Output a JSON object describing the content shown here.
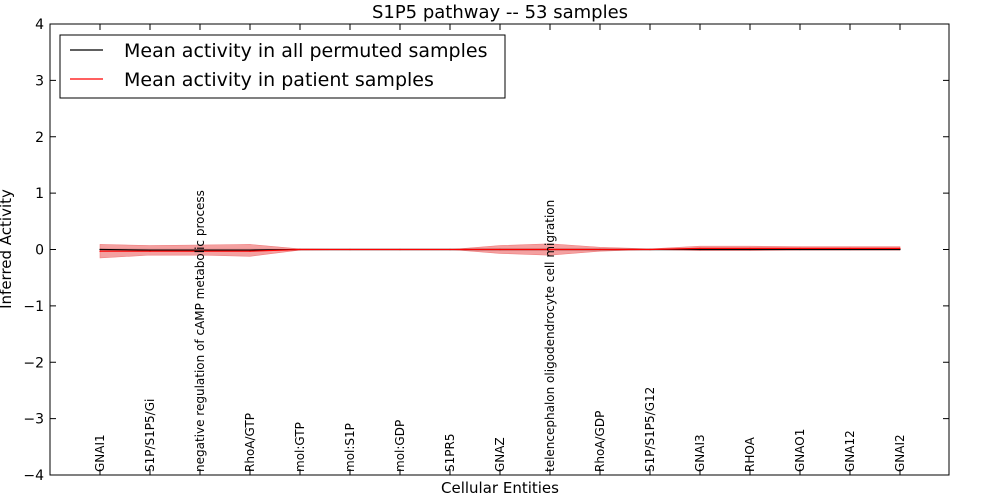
{
  "chart_data": {
    "type": "line",
    "title": "S1P5 pathway -- 53 samples",
    "xlabel": "Cellular Entities",
    "ylabel": "Inferred Activity",
    "ylim": [
      -4,
      4
    ],
    "yticks": [
      -4,
      -3,
      -2,
      -1,
      0,
      1,
      2,
      3,
      4
    ],
    "ytick_labels": [
      "−4",
      "−3",
      "−2",
      "−1",
      "0",
      "1",
      "2",
      "3",
      "4"
    ],
    "legend_position": "top-left",
    "categories": [
      "GNAI1",
      "S1P/S1P5/Gi",
      "negative regulation of cAMP metabolic process",
      "RhoA/GTP",
      "mol:GTP",
      "mol:S1P",
      "mol:GDP",
      "S1PR5",
      "GNAZ",
      "telencephalon oligodendrocyte cell migration",
      "RhoA/GDP",
      "S1P/S1P5/G12",
      "GNAI3",
      "RHOA",
      "GNAO1",
      "GNA12",
      "GNAI2"
    ],
    "series": [
      {
        "name": "Mean activity in all permuted samples",
        "color": "#000000",
        "values": [
          0.0,
          -0.01,
          -0.01,
          -0.01,
          0.0,
          0.0,
          0.0,
          0.0,
          0.0,
          0.0,
          0.0,
          0.0,
          0.0,
          0.0,
          0.0,
          0.0,
          0.0
        ],
        "band_upper": [
          0.02,
          0.01,
          0.01,
          0.01,
          0.01,
          0.01,
          0.01,
          0.01,
          0.01,
          0.01,
          0.01,
          0.01,
          0.01,
          0.01,
          0.01,
          0.01,
          0.01
        ],
        "band_lower": [
          -0.03,
          -0.03,
          -0.03,
          -0.03,
          -0.01,
          -0.01,
          -0.01,
          -0.01,
          -0.01,
          -0.01,
          -0.01,
          -0.01,
          -0.01,
          -0.01,
          -0.01,
          -0.01,
          -0.01
        ],
        "band_color": "#bbbbbb"
      },
      {
        "name": "Mean activity in patient samples",
        "color": "#ff0000",
        "values": [
          -0.03,
          -0.03,
          -0.03,
          -0.03,
          0.0,
          0.0,
          0.0,
          0.0,
          0.0,
          0.0,
          0.0,
          0.0,
          0.02,
          0.02,
          0.02,
          0.02,
          0.02
        ],
        "band_upper": [
          0.09,
          0.07,
          0.08,
          0.09,
          0.01,
          0.0,
          0.0,
          0.0,
          0.07,
          0.1,
          0.04,
          0.01,
          0.06,
          0.06,
          0.05,
          0.05,
          0.05
        ],
        "band_lower": [
          -0.15,
          -0.1,
          -0.1,
          -0.12,
          -0.01,
          0.0,
          0.0,
          0.0,
          -0.07,
          -0.1,
          -0.03,
          0.0,
          -0.02,
          -0.02,
          -0.01,
          -0.01,
          -0.01
        ],
        "band_color": "#f08080"
      }
    ]
  }
}
